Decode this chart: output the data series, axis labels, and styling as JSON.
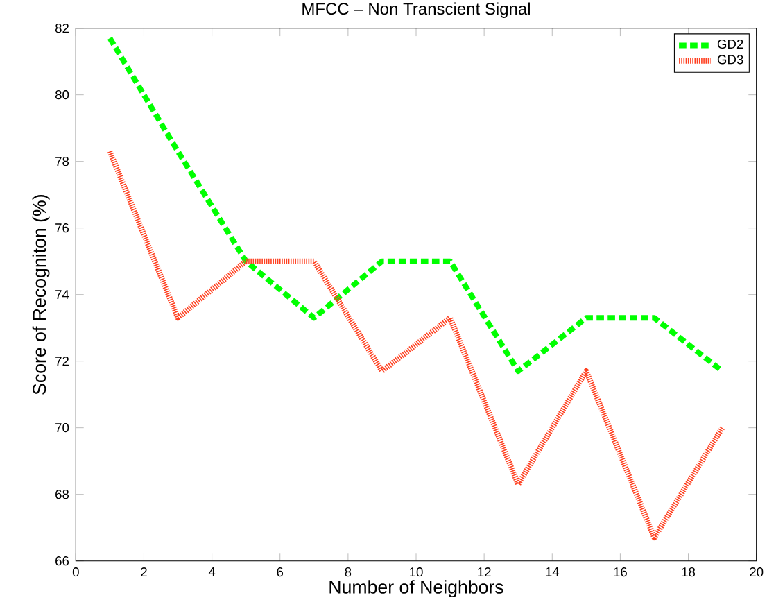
{
  "chart_data": {
    "type": "line",
    "title": "MFCC – Non Transcient Signal",
    "xlabel": "Number of Neighbors",
    "ylabel": "Score of Recogniton (%)",
    "x": [
      1,
      3,
      5,
      7,
      9,
      11,
      13,
      15,
      17,
      19
    ],
    "series": [
      {
        "name": "GD2",
        "color": "#00ff00",
        "line_style": "dashed",
        "values": [
          81.7,
          78.3,
          75,
          73.3,
          75,
          75,
          71.7,
          73.3,
          73.3,
          71.7
        ]
      },
      {
        "name": "GD3",
        "color": "#ff4020",
        "line_style": "dotted",
        "values": [
          78.3,
          73.3,
          75,
          75,
          71.7,
          73.3,
          68.3,
          71.7,
          66.7,
          70
        ]
      }
    ],
    "xlim": [
      0,
      20
    ],
    "ylim": [
      66,
      82
    ],
    "xticks": [
      0,
      2,
      4,
      6,
      8,
      10,
      12,
      14,
      16,
      18,
      20
    ],
    "yticks": [
      66,
      68,
      70,
      72,
      74,
      76,
      78,
      80,
      82
    ],
    "grid": false,
    "legend": "top right",
    "marker": "none"
  }
}
